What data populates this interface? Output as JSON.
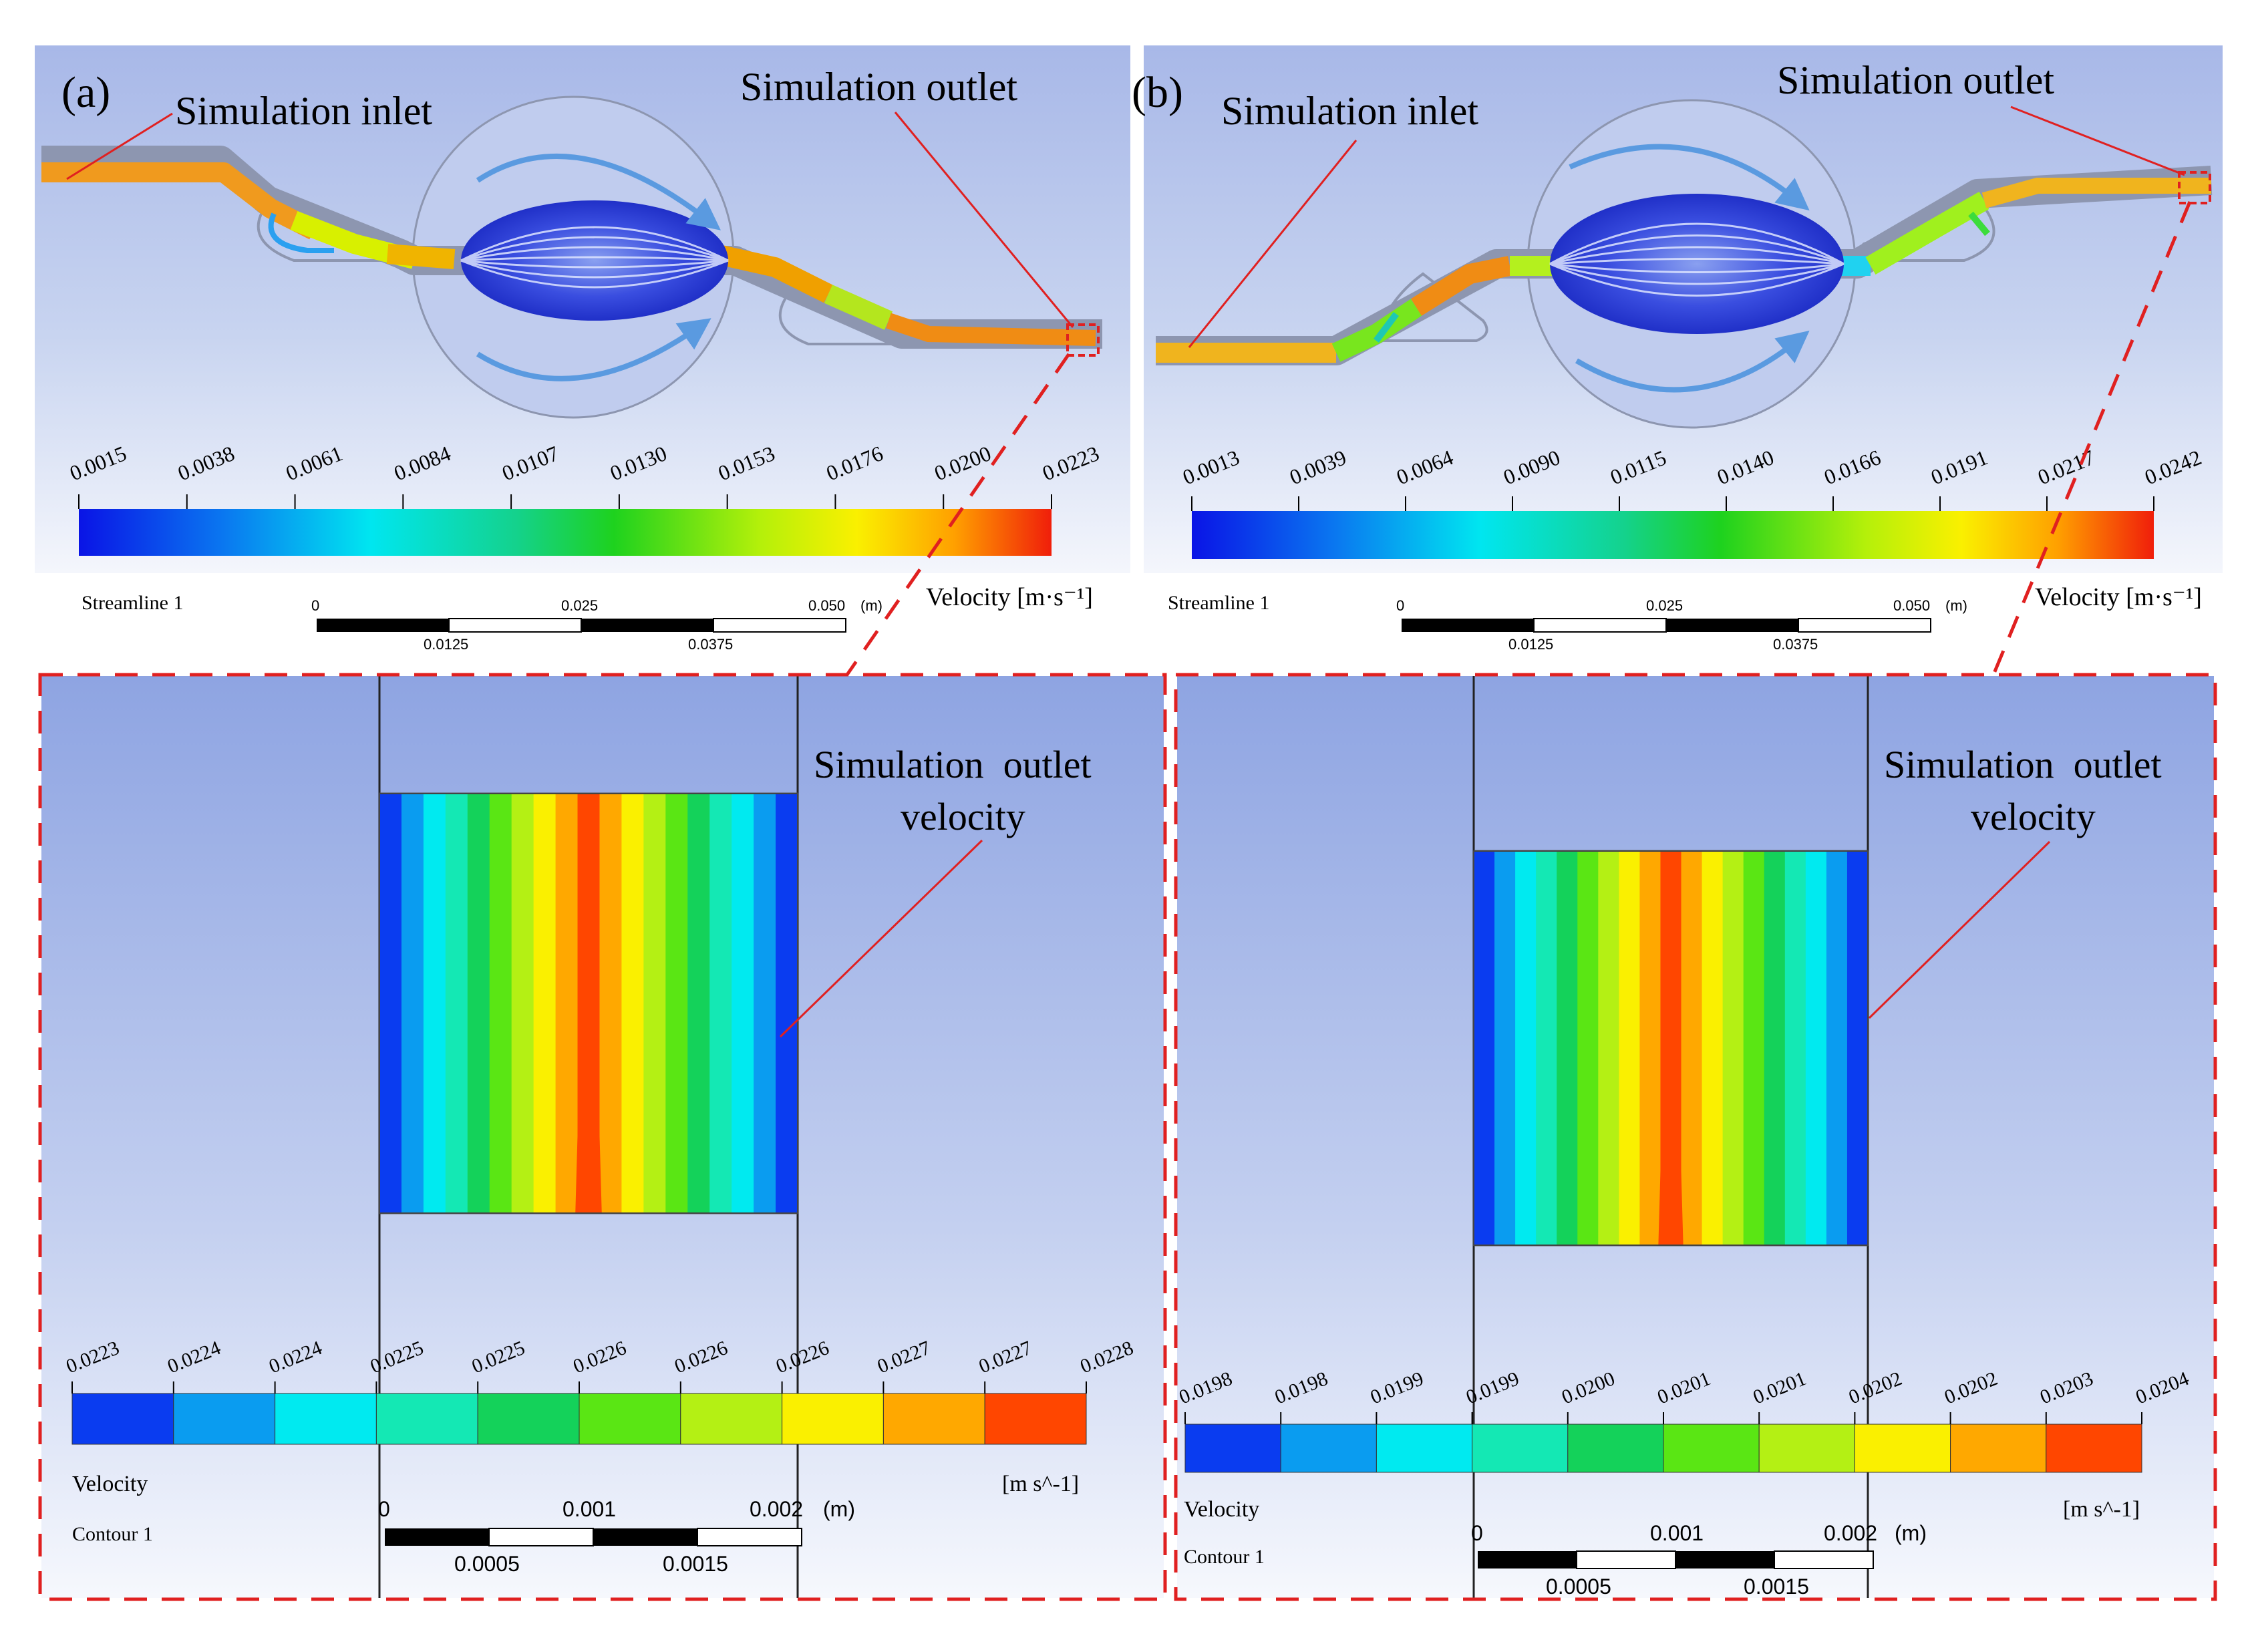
{
  "panel_a": {
    "panel_label": "(a)",
    "inlet_label": "Simulation inlet",
    "outlet_label": "Simulation outlet",
    "top_legend": {
      "ticks": [
        "0.0015",
        "0.0038",
        "0.0061",
        "0.0084",
        "0.0107",
        "0.0130",
        "0.0153",
        "0.0176",
        "0.0200",
        "0.0223"
      ],
      "streamline_label": "Streamline 1",
      "velocity_label": "Velocity [m·s⁻¹]",
      "scale_top": [
        "0",
        "0.025",
        "0.050"
      ],
      "scale_unit": "(m)",
      "scale_bottom": [
        "0.0125",
        "0.0375"
      ]
    },
    "zoom": {
      "callout_line1": "Simulation  outlet",
      "callout_line2": "velocity",
      "legend_ticks": [
        "0.0223",
        "0.0224",
        "0.0224",
        "0.0225",
        "0.0225",
        "0.0226",
        "0.0226",
        "0.0226",
        "0.0227",
        "0.0227",
        "0.0228"
      ],
      "legend_title": "Velocity",
      "legend_unit": "[m s^-1]",
      "contour_label": "Contour 1",
      "scale_top": [
        "0",
        "0.001",
        "0.002"
      ],
      "scale_unit": "(m)",
      "scale_bottom": [
        "0.0005",
        "0.0015"
      ]
    }
  },
  "panel_b": {
    "panel_label": "(b)",
    "inlet_label": "Simulation inlet",
    "outlet_label": "Simulation outlet",
    "top_legend": {
      "ticks": [
        "0.0013",
        "0.0039",
        "0.0064",
        "0.0090",
        "0.0115",
        "0.0140",
        "0.0166",
        "0.0191",
        "0.0217",
        "0.0242"
      ],
      "streamline_label": "Streamline 1",
      "velocity_label": "Velocity [m·s⁻¹]",
      "scale_top": [
        "0",
        "0.025",
        "0.050"
      ],
      "scale_unit": "(m)",
      "scale_bottom": [
        "0.0125",
        "0.0375"
      ]
    },
    "zoom": {
      "callout_line1": "Simulation  outlet",
      "callout_line2": "velocity",
      "legend_ticks": [
        "0.0198",
        "0.0198",
        "0.0199",
        "0.0199",
        "0.0200",
        "0.0201",
        "0.0201",
        "0.0202",
        "0.0202",
        "0.0203",
        "0.0204"
      ],
      "legend_title": "Velocity",
      "legend_unit": "[m s^-1]",
      "contour_label": "Contour 1",
      "scale_top": [
        "0",
        "0.001",
        "0.002"
      ],
      "scale_unit": "(m)",
      "scale_bottom": [
        "0.0005",
        "0.0015"
      ]
    }
  },
  "colors": {
    "band_colors": [
      "#0a3cf0",
      "#0a9cf0",
      "#00eaf0",
      "#14e8b4",
      "#14d25a",
      "#5ae614",
      "#b4f014",
      "#faf000",
      "#ffa800",
      "#ff4600"
    ],
    "dashed_red": "#e02020",
    "annotation_line": "#e02020"
  }
}
